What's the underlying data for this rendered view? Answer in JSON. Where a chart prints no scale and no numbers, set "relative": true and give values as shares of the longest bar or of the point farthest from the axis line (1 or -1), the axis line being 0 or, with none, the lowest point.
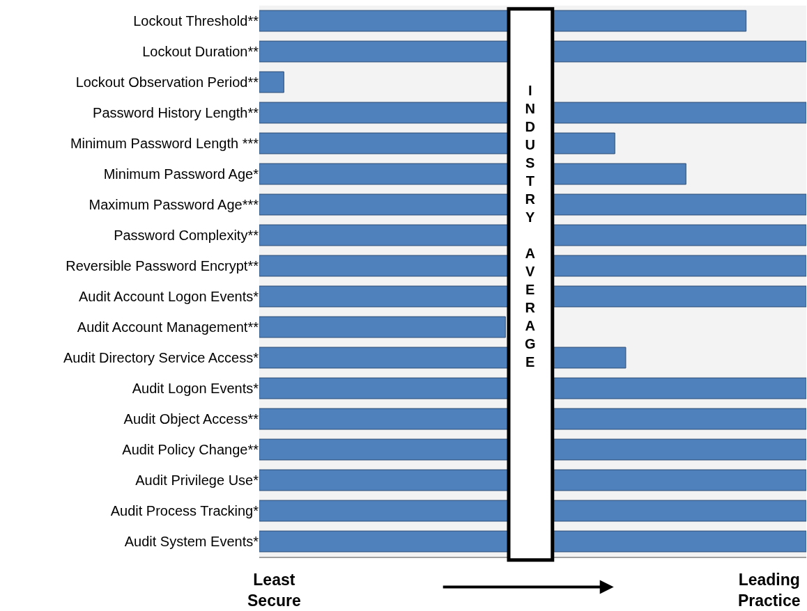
{
  "chart_data": {
    "type": "bar",
    "orientation": "horizontal",
    "relative": true,
    "grid": false,
    "categories": [
      "Lockout Threshold**",
      "Lockout Duration**",
      "Lockout Observation Period**",
      "Password History Length**",
      "Minimum Password Length ***",
      "Minimum Password Age*",
      "Maximum Password Age***",
      "Password Complexity**",
      "Reversible Password Encrypt**",
      "Audit Account Logon Events*",
      "Audit Account Management**",
      "Audit Directory Service Access*",
      "Audit Logon Events*",
      "Audit Object Access**",
      "Audit Policy Change**",
      "Audit Privilege Use*",
      "Audit Process Tracking*",
      "Audit System Events*"
    ],
    "series": [
      {
        "color": "#4f81bd",
        "values": [
          0.89,
          1,
          0.045,
          1,
          0.65,
          0.78,
          1,
          1,
          1,
          1,
          0.45,
          0.67,
          1,
          1,
          1,
          1,
          1,
          1
        ]
      }
    ],
    "bands": [
      {
        "axis": "x",
        "from": 0.456,
        "to": 0.536,
        "label": "INDUSTRY AVERAGE",
        "color": "#ffffff"
      }
    ],
    "annotations": [
      "Least\nSecure",
      "Leading\nPractice"
    ]
  }
}
